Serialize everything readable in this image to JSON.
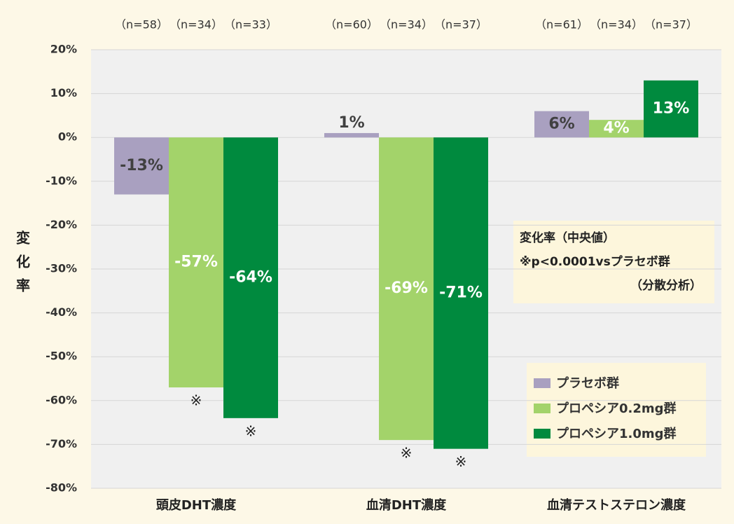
{
  "chart_data": {
    "type": "bar",
    "y_label": "変化率",
    "categories": [
      "頭皮DHT濃度",
      "血清DHT濃度",
      "血清テストステロン濃度"
    ],
    "series": [
      {
        "name": "プラセボ群",
        "color": "#a9a0c0",
        "label_color": "#404040",
        "values": [
          -13,
          1,
          6
        ],
        "value_labels": [
          "-13%",
          "1%",
          "6%"
        ],
        "n_labels": [
          "（n=58）",
          "（n=60）",
          "（n=61）"
        ],
        "markers": [
          null,
          null,
          null
        ]
      },
      {
        "name": "プロペシア0.2mg群",
        "color": "#a3d36a",
        "label_color": "#ffffff",
        "values": [
          -57,
          -69,
          4
        ],
        "value_labels": [
          "-57%",
          "-69%",
          "4%"
        ],
        "n_labels": [
          "（n=34）",
          "（n=34）",
          "（n=34）"
        ],
        "markers": [
          "※",
          "※",
          null
        ]
      },
      {
        "name": "プロペシア1.0mg群",
        "color": "#008a3e",
        "label_color": "#ffffff",
        "values": [
          -64,
          -71,
          13
        ],
        "value_labels": [
          "-64%",
          "-71%",
          "13%"
        ],
        "n_labels": [
          "（n=33）",
          "（n=37）",
          "（n=37）"
        ],
        "markers": [
          "※",
          "※",
          null
        ]
      }
    ],
    "ylim": [
      -80,
      20
    ],
    "yticks": [
      {
        "value": 20,
        "label": "20%"
      },
      {
        "value": 10,
        "label": "10%"
      },
      {
        "value": 0,
        "label": "0%"
      },
      {
        "value": -10,
        "label": "-10%"
      },
      {
        "value": -20,
        "label": "-20%"
      },
      {
        "value": -30,
        "label": "-30%"
      },
      {
        "value": -40,
        "label": "-40%"
      },
      {
        "value": -50,
        "label": "-50%"
      },
      {
        "value": -60,
        "label": "-60%"
      },
      {
        "value": -70,
        "label": "-70%"
      },
      {
        "value": -80,
        "label": "-80%"
      }
    ],
    "grid": true,
    "annotation": [
      "変化率（中央値）",
      "※p<0.0001vsプラセボ群",
      "（分散分析）"
    ]
  }
}
